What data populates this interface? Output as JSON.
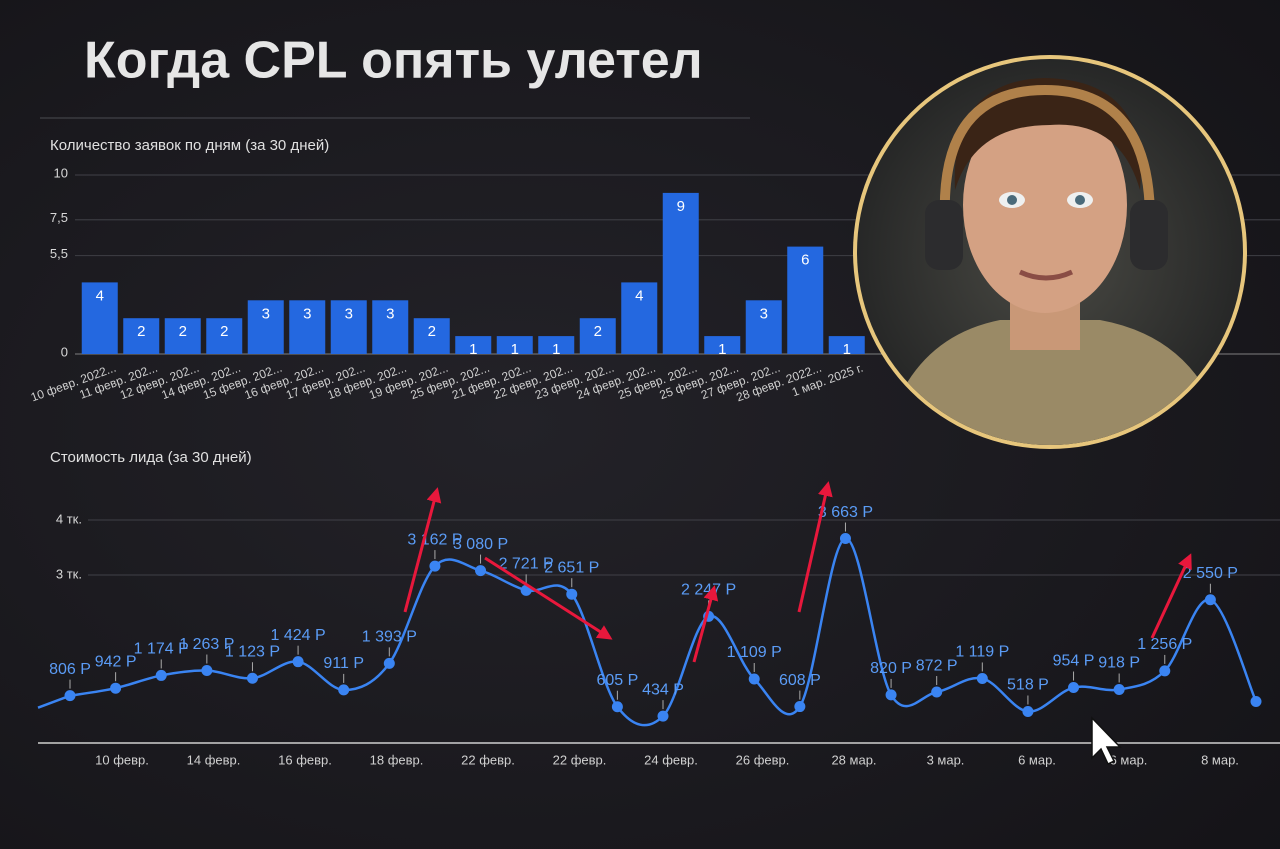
{
  "title": "Когда CPL опять улетел",
  "chart_data": [
    {
      "type": "bar",
      "title": "Количество заявок по дням (за 30 дней)",
      "categories": [
        "10 февр. 2022...",
        "11 февр. 202...",
        "12 февр. 202...",
        "14 февр. 202...",
        "15 февр. 202...",
        "16 февр. 202...",
        "17 февр. 202...",
        "18 февр. 202...",
        "19 февр. 202...",
        "25 февр. 202...",
        "21 февр. 202...",
        "22 февр. 202...",
        "23 февр. 202...",
        "24 февр. 202...",
        "25 февр. 202...",
        "25 февр. 202...",
        "27 февр. 202...",
        "28 февр. 2022...",
        "1 мар. 2025 г."
      ],
      "values": [
        4,
        2,
        2,
        2,
        3,
        3,
        3,
        3,
        2,
        1,
        1,
        1,
        2,
        4,
        9,
        1,
        3,
        6,
        1
      ],
      "color": "#2468e0",
      "ylim": [
        0,
        10
      ],
      "yticks": [
        0,
        {
          "value": 5.5,
          "label": "5,5"
        },
        {
          "value": 7.5,
          "label": "7,5"
        },
        10
      ],
      "grid": true
    },
    {
      "type": "line",
      "title": "Стоимость лида (за 30 дней)",
      "x_axis_labels": [
        "10 февр.",
        "14 февр.",
        "16 февр.",
        "18 февр.",
        "22 февр.",
        "22 февр.",
        "24 февр.",
        "26 февр.",
        "28 мар.",
        "3 мар.",
        "6 мар.",
        "6 мар.",
        "8 мар."
      ],
      "values": [
        806,
        942,
        1174,
        1263,
        1123,
        1424,
        911,
        1393,
        3162,
        3080,
        2721,
        2651,
        605,
        434,
        2247,
        1109,
        608,
        3663,
        820,
        872,
        1119,
        518,
        954,
        918,
        1256,
        2550,
        700
      ],
      "value_labels": [
        "806 Р",
        "942 Р",
        "1 174 Р",
        "1 263 Р",
        "1 123 Р",
        "1 424 Р",
        "911 Р",
        "1 393 Р",
        "3 162 Р",
        "3 080 Р",
        "2 721 Р",
        "2 651 Р",
        "605 Р",
        "434 Р",
        "2 247 Р",
        "1 109 Р",
        "608 Р",
        "3 663 Р",
        "820 Р",
        "872 Р",
        "1 119 Р",
        "518 Р",
        "954 Р",
        "918 Р",
        "1 256 Р",
        "2 550 Р",
        null
      ],
      "color": "#3a84f2",
      "ylim": [
        0,
        4800
      ],
      "yticks": [
        {
          "value": 3000,
          "label": "3 тк."
        },
        {
          "value": 4000,
          "label": "4 тк."
        }
      ],
      "grid": true
    }
  ]
}
